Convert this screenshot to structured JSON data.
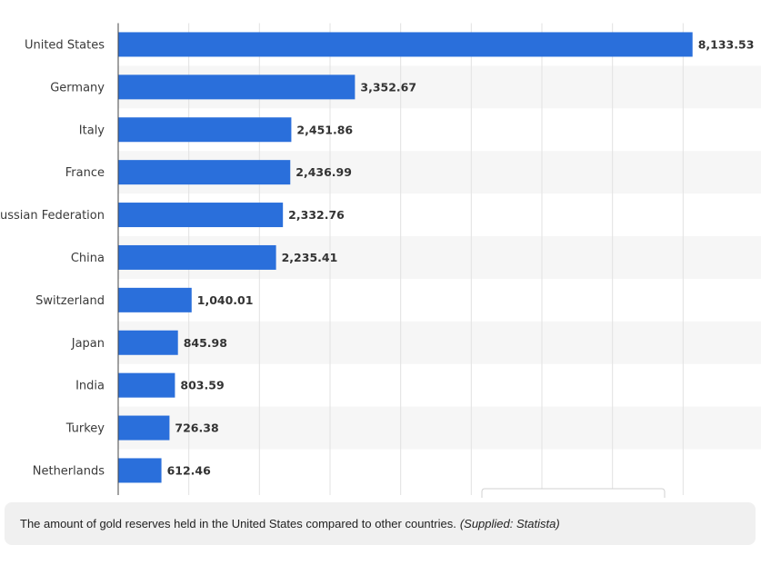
{
  "chart_data": {
    "type": "bar",
    "orientation": "horizontal",
    "categories": [
      "United States",
      "Germany",
      "Italy",
      "France",
      "Russian Federation",
      "China",
      "Switzerland",
      "Japan",
      "India",
      "Turkey",
      "Netherlands"
    ],
    "values": [
      8133.53,
      3352.67,
      2451.86,
      2436.99,
      2332.76,
      2235.41,
      1040.01,
      845.98,
      803.59,
      726.38,
      612.46
    ],
    "value_labels": [
      "8,133.53",
      "3,352.67",
      "2,451.86",
      "2,436.99",
      "2,332.76",
      "2,235.41",
      "1,040.01",
      "845.98",
      "803.59",
      "726.38",
      "612.46"
    ],
    "color": "#2a6fdb",
    "xlim": [
      0,
      9000
    ],
    "xticks": [
      1000,
      2000,
      3000,
      4000,
      5000,
      6000,
      7000,
      8000
    ],
    "grid": true
  },
  "caption": {
    "text": "The amount of gold reserves held in the United States compared to other countries.",
    "source": "(Supplied: Statista)"
  }
}
